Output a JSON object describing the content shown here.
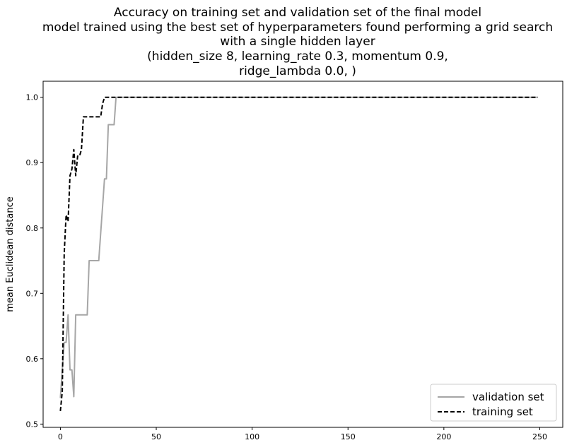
{
  "chart_data": {
    "type": "line",
    "title_lines": [
      "Accuracy on training set and validation set of the final model",
      "model trained using the best set of hyperparameters found performing a grid search",
      "with a single hidden layer",
      "(hidden_size 8, learning_rate 0.3, momentum 0.9,",
      "ridge_lambda 0.0, )"
    ],
    "xlabel": "",
    "ylabel": "mean Euclidean distance",
    "xlim": [
      -9,
      262
    ],
    "ylim": [
      0.495,
      1.0245
    ],
    "xticks": [
      0,
      50,
      100,
      150,
      200,
      250
    ],
    "yticks": [
      0.5,
      0.6,
      0.7,
      0.8,
      0.9,
      1.0
    ],
    "ytick_labels": [
      "0.5",
      "0.6",
      "0.7",
      "0.8",
      "0.9",
      "1.0"
    ],
    "grid": false,
    "legend_position": "bottom-right",
    "series": [
      {
        "name": "validation set",
        "color": "#a6a6a6",
        "style": "solid",
        "x": [
          0,
          1,
          2,
          3,
          4,
          5,
          6,
          7,
          8,
          9,
          10,
          11,
          12,
          13,
          14,
          15,
          16,
          17,
          18,
          19,
          20,
          21,
          22,
          23,
          24,
          25,
          26,
          27,
          28,
          29,
          30,
          249
        ],
        "y": [
          0.54,
          0.583,
          0.625,
          0.625,
          0.667,
          0.583,
          0.583,
          0.542,
          0.667,
          0.667,
          0.667,
          0.667,
          0.667,
          0.667,
          0.667,
          0.75,
          0.75,
          0.75,
          0.75,
          0.75,
          0.75,
          0.792,
          0.833,
          0.875,
          0.875,
          0.958,
          0.958,
          0.958,
          0.958,
          1.0,
          1.0,
          1.0
        ]
      },
      {
        "name": "training set",
        "color": "#000000",
        "style": "dashed",
        "x": [
          0,
          1,
          2,
          3,
          4,
          5,
          6,
          7,
          8,
          9,
          10,
          11,
          12,
          13,
          14,
          15,
          16,
          17,
          18,
          19,
          20,
          21,
          22,
          23,
          24,
          25,
          26,
          30,
          249
        ],
        "y": [
          0.52,
          0.55,
          0.76,
          0.82,
          0.81,
          0.88,
          0.89,
          0.92,
          0.88,
          0.91,
          0.91,
          0.92,
          0.97,
          0.97,
          0.97,
          0.97,
          0.97,
          0.97,
          0.97,
          0.97,
          0.97,
          0.97,
          0.99,
          1.0,
          1.0,
          1.0,
          1.0,
          1.0,
          1.0
        ]
      }
    ]
  }
}
